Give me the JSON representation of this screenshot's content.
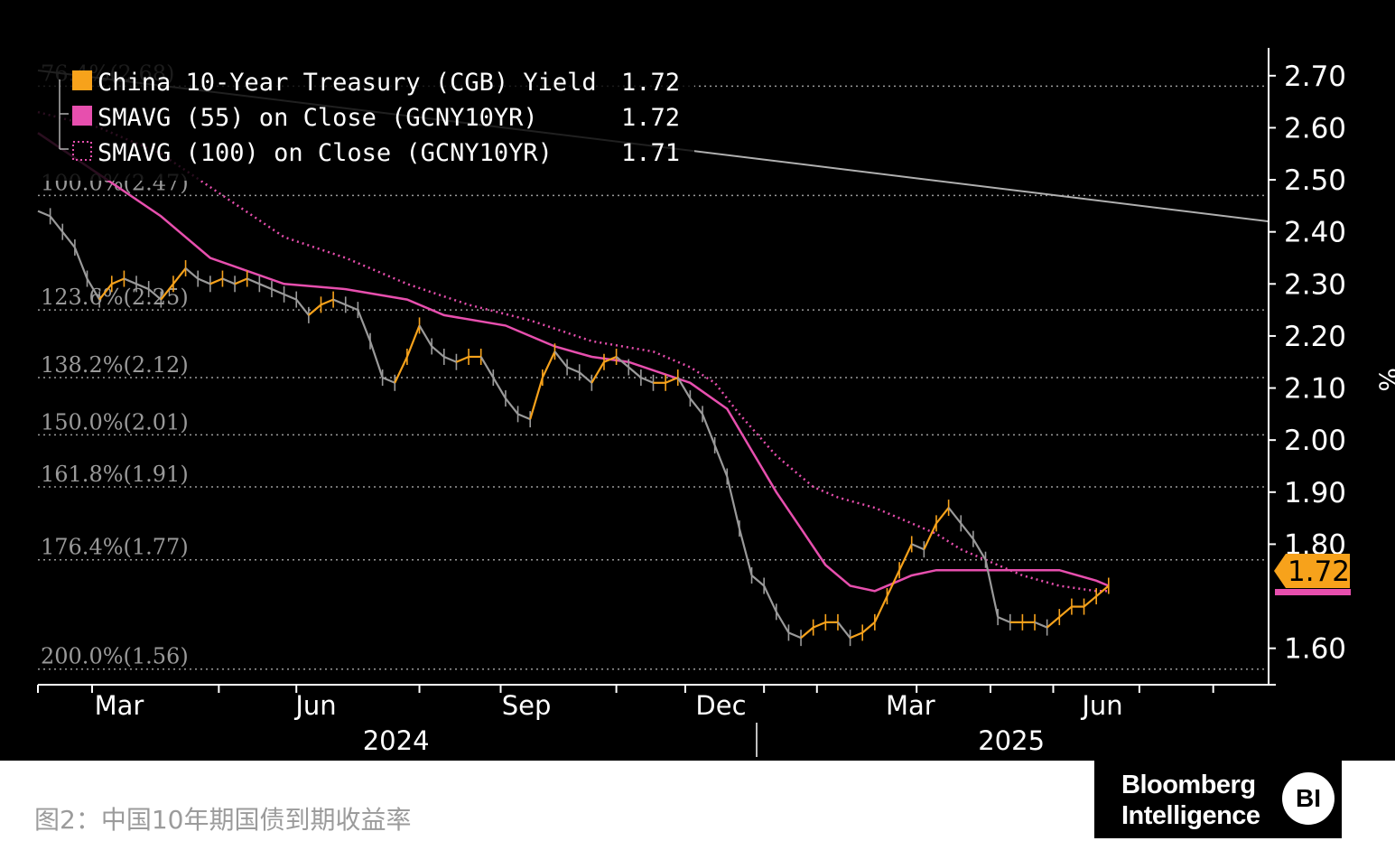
{
  "caption": "图2：中国10年期国债到期收益率",
  "logo": {
    "line1": "Bloomberg",
    "line2": "Intelligence",
    "badge": "BI"
  },
  "colors": {
    "background": "#000000",
    "yield_up": "#f7a21b",
    "yield_down": "#9a9a9a",
    "sma55": "#e74fae",
    "sma100": "#e74fae",
    "last_tag": "#f7a21b",
    "trendline": "#b0b0b0",
    "fib": "#9a9a9a"
  },
  "chart_data": {
    "type": "line",
    "unit_label": "%",
    "ylim": [
      1.53,
      2.75
    ],
    "y_ticks": [
      "2.70",
      "2.60",
      "2.50",
      "2.40",
      "2.30",
      "2.20",
      "2.10",
      "2.00",
      "1.90",
      "1.80",
      "1.60"
    ],
    "x_axis": {
      "months": [
        "Mar",
        "Jun",
        "Sep",
        "Dec",
        "Mar",
        "Jun"
      ],
      "years": [
        "2024",
        "2025"
      ]
    },
    "legend": [
      {
        "label": "China 10-Year Treasury (CGB) Yield",
        "value": "1.72",
        "style": "solid"
      },
      {
        "label": "SMAVG (55)  on Close (GCNY10YR)",
        "value": "1.72",
        "style": "solid"
      },
      {
        "label": "SMAVG (100)  on Close (GCNY10YR)",
        "value": "1.71",
        "style": "dotted"
      }
    ],
    "last_value_tag": "1.72",
    "fib_levels": [
      {
        "label": "76.4%(2.68)",
        "value": 2.68
      },
      {
        "label": "100.0%(2.47)",
        "value": 2.47
      },
      {
        "label": "123.6%(2.25)",
        "value": 2.25
      },
      {
        "label": "138.2%(2.12)",
        "value": 2.12
      },
      {
        "label": "150.0%(2.01)",
        "value": 2.01
      },
      {
        "label": "161.8%(1.91)",
        "value": 1.91
      },
      {
        "label": "176.4%(1.77)",
        "value": 1.77
      },
      {
        "label": "200.0%(1.56)",
        "value": 1.56
      }
    ],
    "trendline": [
      {
        "x": 0,
        "y": 2.71
      },
      {
        "x": 1.0,
        "y": 2.42
      }
    ],
    "series": [
      {
        "name": "China 10-Year Treasury (CGB) Yield",
        "x": [
          0.0,
          0.01,
          0.02,
          0.03,
          0.04,
          0.05,
          0.06,
          0.07,
          0.08,
          0.09,
          0.1,
          0.11,
          0.12,
          0.13,
          0.14,
          0.15,
          0.16,
          0.17,
          0.18,
          0.19,
          0.2,
          0.21,
          0.22,
          0.23,
          0.24,
          0.25,
          0.26,
          0.27,
          0.28,
          0.29,
          0.3,
          0.31,
          0.32,
          0.33,
          0.34,
          0.35,
          0.36,
          0.37,
          0.38,
          0.39,
          0.4,
          0.41,
          0.42,
          0.43,
          0.44,
          0.45,
          0.46,
          0.47,
          0.48,
          0.49,
          0.5,
          0.51,
          0.52,
          0.53,
          0.54,
          0.55,
          0.56,
          0.57,
          0.58,
          0.59,
          0.6,
          0.61,
          0.62,
          0.63,
          0.64,
          0.65,
          0.66,
          0.67,
          0.68,
          0.69,
          0.7,
          0.71,
          0.72,
          0.73,
          0.74,
          0.75,
          0.76,
          0.77,
          0.78,
          0.79,
          0.8,
          0.81,
          0.82,
          0.83,
          0.84,
          0.85,
          0.86,
          0.87
        ],
        "values": [
          2.44,
          2.43,
          2.4,
          2.37,
          2.31,
          2.27,
          2.3,
          2.31,
          2.3,
          2.29,
          2.27,
          2.3,
          2.33,
          2.31,
          2.3,
          2.31,
          2.3,
          2.31,
          2.3,
          2.29,
          2.28,
          2.27,
          2.24,
          2.26,
          2.27,
          2.26,
          2.25,
          2.19,
          2.12,
          2.11,
          2.16,
          2.22,
          2.18,
          2.16,
          2.15,
          2.16,
          2.16,
          2.12,
          2.08,
          2.05,
          2.04,
          2.12,
          2.17,
          2.14,
          2.13,
          2.11,
          2.15,
          2.16,
          2.14,
          2.12,
          2.11,
          2.11,
          2.12,
          2.08,
          2.05,
          1.99,
          1.93,
          1.83,
          1.74,
          1.72,
          1.67,
          1.63,
          1.62,
          1.64,
          1.65,
          1.65,
          1.62,
          1.63,
          1.65,
          1.7,
          1.75,
          1.8,
          1.79,
          1.84,
          1.87,
          1.84,
          1.81,
          1.77,
          1.66,
          1.65,
          1.65,
          1.65,
          1.64,
          1.66,
          1.68,
          1.68,
          1.7,
          1.72
        ]
      },
      {
        "name": "SMAVG (55) on Close (GCNY10YR)",
        "x": [
          0.0,
          0.05,
          0.1,
          0.14,
          0.2,
          0.25,
          0.3,
          0.33,
          0.38,
          0.42,
          0.45,
          0.48,
          0.53,
          0.56,
          0.58,
          0.6,
          0.62,
          0.64,
          0.66,
          0.68,
          0.7,
          0.71,
          0.73,
          0.75,
          0.77,
          0.8,
          0.83,
          0.86,
          0.87
        ],
        "values": [
          2.59,
          2.51,
          2.43,
          2.35,
          2.3,
          2.29,
          2.27,
          2.24,
          2.22,
          2.18,
          2.16,
          2.15,
          2.11,
          2.06,
          1.98,
          1.9,
          1.83,
          1.76,
          1.72,
          1.71,
          1.73,
          1.74,
          1.75,
          1.75,
          1.75,
          1.75,
          1.75,
          1.73,
          1.72
        ]
      },
      {
        "name": "SMAVG (100) on Close (GCNY10YR)",
        "x": [
          0.0,
          0.05,
          0.1,
          0.15,
          0.2,
          0.25,
          0.3,
          0.35,
          0.4,
          0.45,
          0.5,
          0.53,
          0.55,
          0.57,
          0.6,
          0.63,
          0.65,
          0.68,
          0.7,
          0.73,
          0.75,
          0.78,
          0.8,
          0.83,
          0.86,
          0.87
        ],
        "values": [
          2.63,
          2.6,
          2.55,
          2.47,
          2.39,
          2.35,
          2.3,
          2.26,
          2.23,
          2.19,
          2.17,
          2.14,
          2.11,
          2.05,
          1.97,
          1.91,
          1.89,
          1.87,
          1.85,
          1.82,
          1.79,
          1.76,
          1.74,
          1.72,
          1.71,
          1.71
        ]
      }
    ]
  }
}
